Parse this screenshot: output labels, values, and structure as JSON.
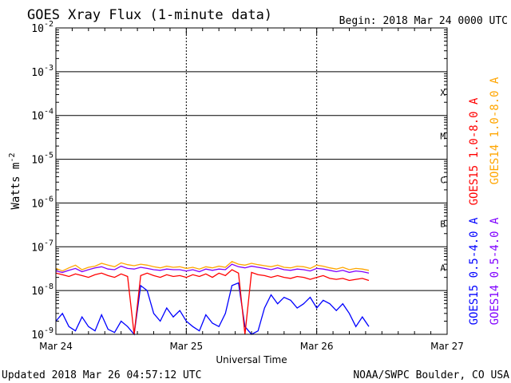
{
  "chart_data": {
    "type": "line",
    "title": "GOES Xray Flux (1-minute data)",
    "begin_label": "Begin:  2018 Mar 24 0000 UTC",
    "xlabel": "Universal Time",
    "ylabel": "Watts m",
    "ylabel_sup": "-2",
    "x_ticks": [
      "Mar 24",
      "Mar 25",
      "Mar 26",
      "Mar 27"
    ],
    "x_range_days": [
      0,
      3
    ],
    "y_scale": "log",
    "y_range": [
      1e-09,
      0.01
    ],
    "y_ticks": [
      {
        "base": "10",
        "exp": "-2"
      },
      {
        "base": "10",
        "exp": "-3"
      },
      {
        "base": "10",
        "exp": "-4"
      },
      {
        "base": "10",
        "exp": "-5"
      },
      {
        "base": "10",
        "exp": "-6"
      },
      {
        "base": "10",
        "exp": "-7"
      },
      {
        "base": "10",
        "exp": "-8"
      },
      {
        "base": "10",
        "exp": "-9"
      }
    ],
    "flare_classes": [
      "X",
      "M",
      "C",
      "B",
      "A"
    ],
    "grid": true,
    "series": [
      {
        "name": "GOES15 1.0-8.0 A",
        "color": "#ff0000",
        "x": [
          0,
          0.05,
          0.1,
          0.15,
          0.2,
          0.25,
          0.3,
          0.35,
          0.4,
          0.45,
          0.5,
          0.55,
          0.6,
          0.65,
          0.7,
          0.75,
          0.8,
          0.85,
          0.9,
          0.95,
          1.0,
          1.05,
          1.1,
          1.15,
          1.2,
          1.25,
          1.3,
          1.35,
          1.4,
          1.45,
          1.5,
          1.55,
          1.6,
          1.65,
          1.7,
          1.75,
          1.8,
          1.85,
          1.9,
          1.95,
          2.0,
          2.05,
          2.1,
          2.15,
          2.2,
          2.25,
          2.3,
          2.35,
          2.4
        ],
        "values": [
          2.5e-08,
          2.3e-08,
          2.1e-08,
          2.4e-08,
          2.2e-08,
          2e-08,
          2.3e-08,
          2.5e-08,
          2.2e-08,
          2e-08,
          2.4e-08,
          2.1e-08,
          1e-09,
          2.2e-08,
          2.5e-08,
          2.2e-08,
          2e-08,
          2.3e-08,
          2.1e-08,
          2.2e-08,
          2e-08,
          2.3e-08,
          2.1e-08,
          2.4e-08,
          2e-08,
          2.5e-08,
          2.2e-08,
          3e-08,
          2.5e-08,
          1e-09,
          2.6e-08,
          2.3e-08,
          2.2e-08,
          2e-08,
          2.2e-08,
          2e-08,
          1.9e-08,
          2.1e-08,
          2e-08,
          1.8e-08,
          2e-08,
          2.2e-08,
          1.9e-08,
          1.8e-08,
          1.9e-08,
          1.7e-08,
          1.8e-08,
          1.9e-08,
          1.7e-08
        ]
      },
      {
        "name": "GOES14 1.0-8.0 A",
        "color": "#ffa500",
        "x": [
          0,
          0.05,
          0.1,
          0.15,
          0.2,
          0.25,
          0.3,
          0.35,
          0.4,
          0.45,
          0.5,
          0.55,
          0.6,
          0.65,
          0.7,
          0.75,
          0.8,
          0.85,
          0.9,
          0.95,
          1.0,
          1.05,
          1.1,
          1.15,
          1.2,
          1.25,
          1.3,
          1.35,
          1.4,
          1.45,
          1.5,
          1.55,
          1.6,
          1.65,
          1.7,
          1.75,
          1.8,
          1.85,
          1.9,
          1.95,
          2.0,
          2.05,
          2.1,
          2.15,
          2.2,
          2.25,
          2.3,
          2.35,
          2.4
        ],
        "values": [
          3.2e-08,
          2.8e-08,
          3.3e-08,
          3.8e-08,
          3e-08,
          3.4e-08,
          3.6e-08,
          4.2e-08,
          3.8e-08,
          3.5e-08,
          4.3e-08,
          3.9e-08,
          3.7e-08,
          4e-08,
          3.8e-08,
          3.5e-08,
          3.3e-08,
          3.6e-08,
          3.4e-08,
          3.5e-08,
          3.2e-08,
          3.4e-08,
          3.1e-08,
          3.5e-08,
          3.3e-08,
          3.6e-08,
          3.4e-08,
          4.6e-08,
          4e-08,
          3.8e-08,
          4.2e-08,
          3.9e-08,
          3.7e-08,
          3.5e-08,
          3.8e-08,
          3.4e-08,
          3.3e-08,
          3.6e-08,
          3.5e-08,
          3.2e-08,
          3.8e-08,
          3.6e-08,
          3.3e-08,
          3.1e-08,
          3.4e-08,
          3e-08,
          3.2e-08,
          3.1e-08,
          2.9e-08
        ]
      },
      {
        "name": "GOES15 0.5-4.0 A",
        "color": "#0000ff",
        "x": [
          0,
          0.05,
          0.1,
          0.15,
          0.2,
          0.25,
          0.3,
          0.35,
          0.4,
          0.45,
          0.5,
          0.55,
          0.6,
          0.65,
          0.7,
          0.75,
          0.8,
          0.85,
          0.9,
          0.95,
          1.0,
          1.05,
          1.1,
          1.15,
          1.2,
          1.25,
          1.3,
          1.35,
          1.4,
          1.45,
          1.5,
          1.55,
          1.6,
          1.65,
          1.7,
          1.75,
          1.8,
          1.85,
          1.9,
          1.95,
          2.0,
          2.05,
          2.1,
          2.15,
          2.2,
          2.25,
          2.3,
          2.35,
          2.4
        ],
        "values": [
          2e-09,
          3e-09,
          1.5e-09,
          1.2e-09,
          2.5e-09,
          1.5e-09,
          1.2e-09,
          2.8e-09,
          1.3e-09,
          1.1e-09,
          2e-09,
          1.5e-09,
          1e-09,
          1.3e-08,
          1e-08,
          3e-09,
          2e-09,
          4e-09,
          2.5e-09,
          3.5e-09,
          2e-09,
          1.5e-09,
          1.2e-09,
          2.8e-09,
          1.8e-09,
          1.5e-09,
          3e-09,
          1.3e-08,
          1.5e-08,
          1.5e-09,
          1e-09,
          1.2e-09,
          4e-09,
          8e-09,
          5e-09,
          7e-09,
          6e-09,
          4e-09,
          5e-09,
          7e-09,
          4e-09,
          6e-09,
          5e-09,
          3.5e-09,
          5e-09,
          3e-09,
          1.5e-09,
          2.5e-09,
          1.5e-09
        ]
      },
      {
        "name": "GOES14 0.5-4.0 A",
        "color": "#7f00ff",
        "x": [
          0,
          0.05,
          0.1,
          0.15,
          0.2,
          0.25,
          0.3,
          0.35,
          0.4,
          0.45,
          0.5,
          0.55,
          0.6,
          0.65,
          0.7,
          0.75,
          0.8,
          0.85,
          0.9,
          0.95,
          1.0,
          1.05,
          1.1,
          1.15,
          1.2,
          1.25,
          1.3,
          1.35,
          1.4,
          1.45,
          1.5,
          1.55,
          1.6,
          1.65,
          1.7,
          1.75,
          1.8,
          1.85,
          1.9,
          1.95,
          2.0,
          2.05,
          2.1,
          2.15,
          2.2,
          2.25,
          2.3,
          2.35,
          2.4
        ],
        "values": [
          2.8e-08,
          2.6e-08,
          2.9e-08,
          3.2e-08,
          2.7e-08,
          3e-08,
          3.3e-08,
          3.5e-08,
          3.1e-08,
          3e-08,
          3.6e-08,
          3.2e-08,
          3.1e-08,
          3.4e-08,
          3.2e-08,
          3e-08,
          2.9e-08,
          3.1e-08,
          3e-08,
          3e-08,
          2.8e-08,
          3e-08,
          2.7e-08,
          3.1e-08,
          2.9e-08,
          3.1e-08,
          3e-08,
          4e-08,
          3.5e-08,
          3.3e-08,
          3.6e-08,
          3.4e-08,
          3.2e-08,
          3e-08,
          3.3e-08,
          3e-08,
          2.9e-08,
          3.1e-08,
          3e-08,
          2.8e-08,
          3.2e-08,
          3.1e-08,
          2.9e-08,
          2.7e-08,
          2.9e-08,
          2.6e-08,
          2.8e-08,
          2.7e-08,
          2.5e-08
        ]
      }
    ]
  },
  "footer": {
    "updated": "Updated 2018 Mar 26 04:57:12 UTC",
    "credit": "NOAA/SWPC Boulder, CO USA"
  }
}
